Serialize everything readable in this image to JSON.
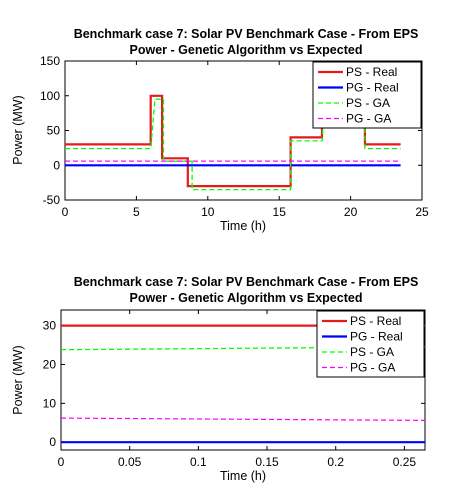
{
  "chart_data": [
    {
      "type": "line",
      "title": "Benchmark case 7: Solar PV Benchmark Case - From EPS",
      "subtitle": "Power - Genetic Algorithm vs Expected",
      "xlabel": "Time (h)",
      "ylabel": "Power (MW)",
      "xlim": [
        0,
        25
      ],
      "ylim": [
        -50,
        150
      ],
      "xticks": [
        0,
        5,
        10,
        15,
        20,
        25
      ],
      "yticks": [
        -50,
        0,
        50,
        100,
        150
      ],
      "xtick_labels": [
        "0",
        "5",
        "10",
        "15",
        "20",
        "25"
      ],
      "ytick_labels": [
        "-50",
        "0",
        "50",
        "100",
        "150"
      ],
      "grid": false,
      "legend_position": "top-right",
      "series": [
        {
          "name": "PS - Real",
          "color": "#e41a1c",
          "style": "solid",
          "width": 2.2,
          "points": [
            [
              0,
              30
            ],
            [
              6,
              30
            ],
            [
              6,
              100
            ],
            [
              6.8,
              100
            ],
            [
              6.8,
              10
            ],
            [
              8.6,
              10
            ],
            [
              8.6,
              -30
            ],
            [
              15.8,
              -30
            ],
            [
              15.8,
              40
            ],
            [
              18,
              40
            ],
            [
              18,
              130
            ],
            [
              21,
              130
            ],
            [
              21,
              30
            ],
            [
              23.5,
              30
            ]
          ]
        },
        {
          "name": "PG - Real",
          "color": "#0000ff",
          "style": "solid",
          "width": 2.2,
          "points": [
            [
              0,
              0
            ],
            [
              23.5,
              0
            ]
          ]
        },
        {
          "name": "PS - GA",
          "color": "#00ff00",
          "style": "dashed",
          "width": 1.3,
          "points": [
            [
              0,
              24
            ],
            [
              6,
              24
            ],
            [
              6.3,
              95
            ],
            [
              6.9,
              95
            ],
            [
              6.9,
              6
            ],
            [
              8.9,
              6
            ],
            [
              8.9,
              -35
            ],
            [
              15.8,
              -35
            ],
            [
              15.8,
              35
            ],
            [
              18,
              35
            ],
            [
              18.3,
              125
            ],
            [
              21,
              125
            ],
            [
              21,
              24
            ],
            [
              23.5,
              24
            ]
          ]
        },
        {
          "name": "PG - GA",
          "color": "#ff00ff",
          "style": "dashed",
          "width": 1.2,
          "points": [
            [
              0,
              6
            ],
            [
              23.5,
              6
            ]
          ]
        }
      ]
    },
    {
      "type": "line",
      "title": "Benchmark case 7: Solar PV Benchmark Case - From EPS",
      "subtitle": "Power - Genetic Algorithm vs Expected",
      "xlabel": "Time (h)",
      "ylabel": "Power (MW)",
      "xlim": [
        0,
        0.265
      ],
      "ylim": [
        -2,
        34
      ],
      "xticks": [
        0,
        0.05,
        0.1,
        0.15,
        0.2,
        0.25
      ],
      "yticks": [
        0,
        10,
        20,
        30
      ],
      "xtick_labels": [
        "0",
        "0.05",
        "0.1",
        "0.15",
        "0.2",
        "0.25"
      ],
      "ytick_labels": [
        "0",
        "10",
        "20",
        "30"
      ],
      "grid": false,
      "legend_position": "top-right",
      "series": [
        {
          "name": "PS - Real",
          "color": "#e41a1c",
          "style": "solid",
          "width": 2.2,
          "points": [
            [
              0,
              30
            ],
            [
              0.265,
              30
            ]
          ]
        },
        {
          "name": "PG - Real",
          "color": "#0000ff",
          "style": "solid",
          "width": 2.2,
          "points": [
            [
              0,
              0
            ],
            [
              0.265,
              0
            ]
          ]
        },
        {
          "name": "PS - GA",
          "color": "#00ff00",
          "style": "dashed",
          "width": 1.3,
          "points": [
            [
              0,
              23.8
            ],
            [
              0.265,
              24.5
            ]
          ]
        },
        {
          "name": "PG - GA",
          "color": "#ff00ff",
          "style": "dashed",
          "width": 1.2,
          "points": [
            [
              0,
              6.2
            ],
            [
              0.265,
              5.6
            ]
          ]
        }
      ]
    }
  ]
}
